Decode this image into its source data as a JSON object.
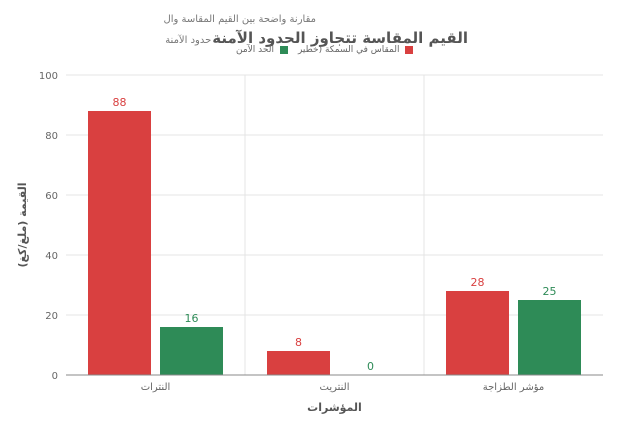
{
  "chart_data": {
    "type": "bar",
    "title": "القيم المقاسة تتجاوز الحدود الآمنة",
    "subtitle_line1": "مقارنة واضحة بين القيم المقاسة وال",
    "subtitle_line2": "حدود الآمنة",
    "xlabel": "المؤشرات",
    "ylabel": "القيمة (ملغ/كغ)",
    "categories": [
      "النترات",
      "النتريت",
      "مؤشر الطزاجة"
    ],
    "series": [
      {
        "name": "المقاس في السمكة (خطير",
        "color": "#d94040",
        "values": [
          88,
          8,
          28
        ]
      },
      {
        "name": "الحد الآمن",
        "color": "#2e8b57",
        "values": [
          16,
          0,
          25
        ]
      }
    ],
    "ylim": [
      0,
      100
    ],
    "yticks": [
      "0",
      "20",
      "40",
      "60",
      "80",
      "100"
    ],
    "grid": true,
    "legend_position": "top"
  }
}
